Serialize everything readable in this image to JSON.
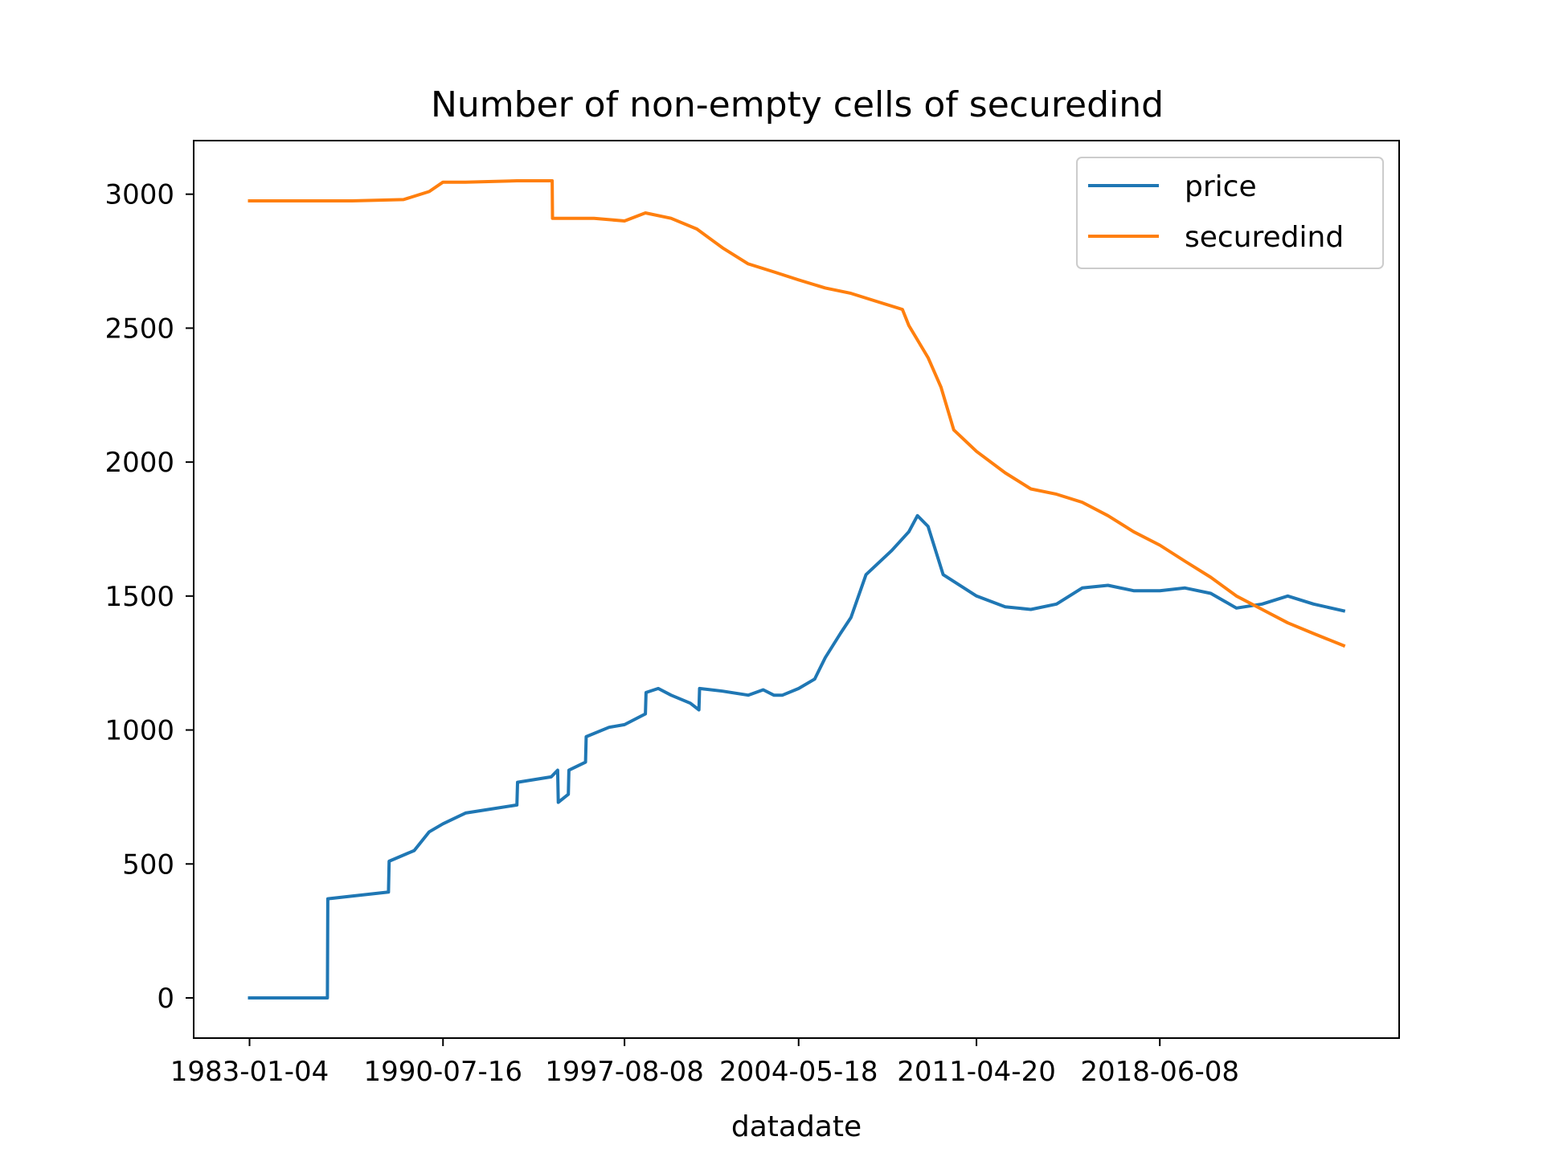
{
  "chart_data": {
    "type": "line",
    "title": "Number of non-empty cells of securedind",
    "xlabel": "datadate",
    "ylabel": "",
    "x_tick_labels": [
      "1983-01-04",
      "1990-07-16",
      "1997-08-08",
      "2004-05-18",
      "2011-04-20",
      "2018-06-08"
    ],
    "x_ticks": [
      "1983-01-04",
      "1990-07-16",
      "1997-08-08",
      "2004-05-18",
      "2011-04-20",
      "2018-06-08"
    ],
    "xlim": [
      "1980-11-01",
      "2027-10-01"
    ],
    "y_ticks": [
      0,
      500,
      1000,
      1500,
      2000,
      2500,
      3000
    ],
    "ylim": [
      -150,
      3200
    ],
    "grid": false,
    "legend_position": "upper right",
    "series": [
      {
        "name": "price",
        "color": "#1f77b4",
        "x": [
          "1983-01-04",
          "1986-01-15",
          "1986-01-20",
          "1987-01-01",
          "1988-06-01",
          "1988-06-10",
          "1989-06-01",
          "1990-01-01",
          "1990-07-16",
          "1991-06-01",
          "1992-06-01",
          "1993-06-01",
          "1993-06-10",
          "1994-10-01",
          "1995-01-01",
          "1995-01-10",
          "1995-06-01",
          "1995-06-10",
          "1996-02-01",
          "1996-02-10",
          "1997-01-01",
          "1997-08-08",
          "1998-06-01",
          "1998-06-10",
          "1998-12-01",
          "1999-06-01",
          "2000-03-01",
          "2000-07-01",
          "2000-07-10",
          "2001-06-01",
          "2002-06-01",
          "2003-01-01",
          "2003-06-01",
          "2003-10-01",
          "2004-05-18",
          "2005-01-01",
          "2005-06-01",
          "2006-01-01",
          "2006-06-01",
          "2007-01-01",
          "2008-01-01",
          "2008-09-01",
          "2009-01-01",
          "2009-06-01",
          "2010-01-01",
          "2011-04-20",
          "2012-06-01",
          "2013-06-01",
          "2014-06-01",
          "2015-06-01",
          "2016-06-01",
          "2017-06-01",
          "2018-06-08",
          "2019-06-01",
          "2020-06-01",
          "2021-06-01",
          "2022-06-01",
          "2023-06-01",
          "2024-06-01",
          "2025-08-01"
        ],
        "values": [
          0,
          0,
          370,
          380,
          395,
          510,
          550,
          620,
          650,
          690,
          705,
          720,
          805,
          825,
          850,
          730,
          760,
          850,
          880,
          975,
          1010,
          1020,
          1060,
          1140,
          1155,
          1130,
          1100,
          1075,
          1155,
          1145,
          1130,
          1150,
          1130,
          1130,
          1155,
          1190,
          1270,
          1360,
          1420,
          1580,
          1670,
          1740,
          1800,
          1760,
          1580,
          1500,
          1460,
          1450,
          1470,
          1530,
          1540,
          1520,
          1520,
          1530,
          1510,
          1455,
          1470,
          1500,
          1470,
          1445
        ]
      },
      {
        "name": "securedind",
        "color": "#ff7f0e",
        "x": [
          "1983-01-04",
          "1987-01-01",
          "1989-01-01",
          "1990-01-01",
          "1990-07-16",
          "1991-06-01",
          "1993-06-01",
          "1994-10-15",
          "1994-10-20",
          "1996-06-01",
          "1997-08-08",
          "1998-06-01",
          "1999-06-01",
          "2000-06-01",
          "2001-06-01",
          "2002-06-01",
          "2003-06-01",
          "2004-05-18",
          "2005-06-01",
          "2006-06-01",
          "2007-06-01",
          "2008-06-01",
          "2008-09-01",
          "2009-06-01",
          "2009-12-01",
          "2010-06-01",
          "2011-04-20",
          "2012-06-01",
          "2013-06-01",
          "2014-06-01",
          "2015-06-01",
          "2016-06-01",
          "2017-06-01",
          "2018-06-08",
          "2019-06-01",
          "2020-06-01",
          "2021-06-01",
          "2022-06-01",
          "2023-06-01",
          "2024-06-01",
          "2025-08-01"
        ],
        "values": [
          2975,
          2975,
          2980,
          3010,
          3045,
          3045,
          3050,
          3050,
          2910,
          2910,
          2900,
          2930,
          2910,
          2870,
          2800,
          2740,
          2710,
          2680,
          2650,
          2630,
          2600,
          2570,
          2510,
          2390,
          2280,
          2120,
          2040,
          1960,
          1900,
          1880,
          1850,
          1800,
          1740,
          1690,
          1630,
          1570,
          1500,
          1450,
          1400,
          1360,
          1315
        ]
      }
    ]
  }
}
